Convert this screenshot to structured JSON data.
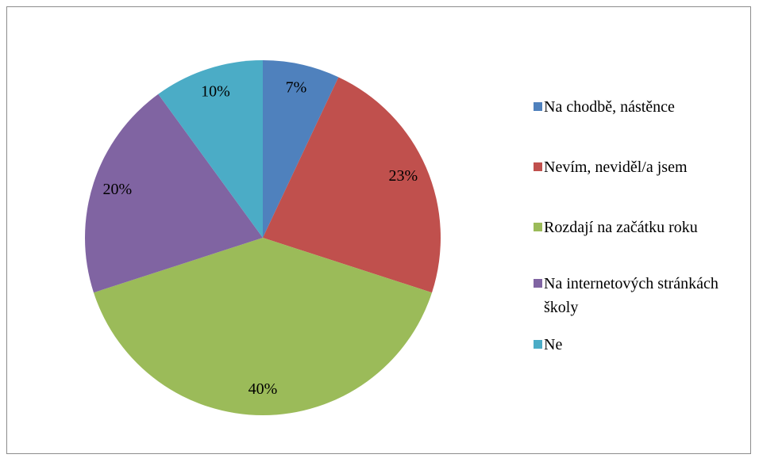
{
  "chart_data": {
    "type": "pie",
    "categories": [
      "Na chodbě, nástěnce",
      "Nevím, neviděl/a jsem",
      "Rozdají na začátku roku",
      "Na internetových stránkách školy",
      "Ne"
    ],
    "values": [
      7,
      23,
      40,
      20,
      10
    ],
    "value_labels": [
      "7%",
      "23%",
      "40%",
      "20%",
      "10%"
    ],
    "colors": [
      "#4f81bd",
      "#c0504d",
      "#9bbb59",
      "#8064a2",
      "#4bacc6"
    ],
    "legend": "right"
  }
}
